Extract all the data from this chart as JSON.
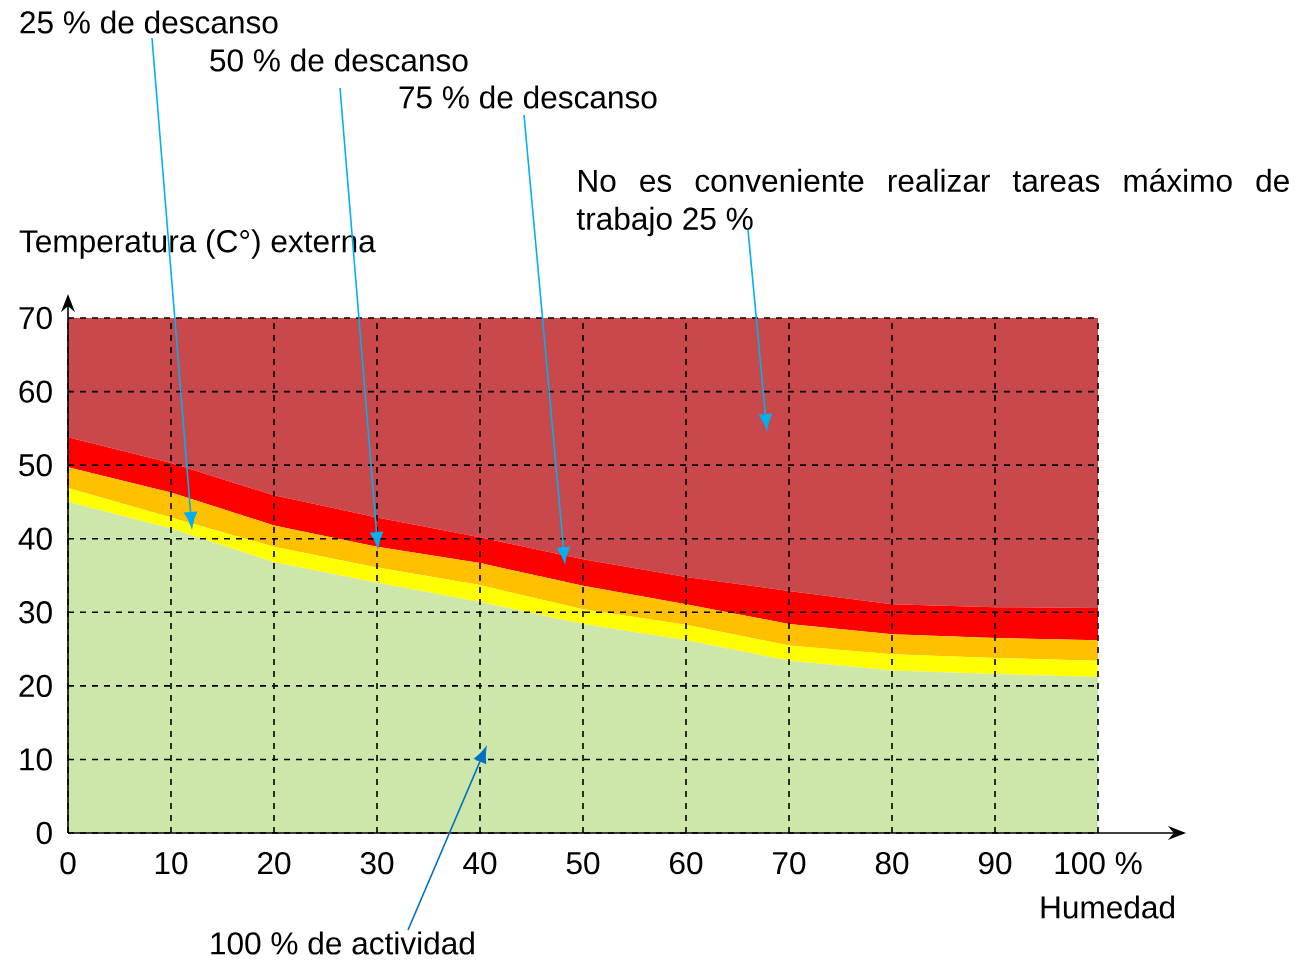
{
  "chart_data": {
    "type": "area",
    "stacked": true,
    "xlabel": "Humedad",
    "ylabel": "Temperatura (C°) externa",
    "x": [
      0,
      10,
      20,
      30,
      40,
      50,
      60,
      70,
      80,
      90,
      100
    ],
    "series": [
      {
        "color": "#cde6aa",
        "values": [
          45.0,
          41.4,
          36.8,
          34.0,
          31.4,
          28.4,
          26.2,
          23.4,
          22.1,
          21.6,
          21.2
        ]
      },
      {
        "color": "#ffff00",
        "values": [
          1.9,
          1.5,
          2.1,
          2.1,
          2.3,
          2.0,
          2.1,
          2.1,
          2.2,
          2.2,
          2.2
        ]
      },
      {
        "color": "#ffc000",
        "values": [
          2.8,
          3.4,
          2.9,
          2.8,
          3.0,
          3.2,
          2.8,
          2.9,
          2.7,
          2.7,
          2.8
        ]
      },
      {
        "color": "#ff0000",
        "values": [
          4.1,
          4.0,
          4.1,
          4.0,
          3.5,
          3.6,
          3.7,
          4.5,
          4.1,
          4.2,
          4.4
        ]
      },
      {
        "color": "#c8484b",
        "values": [
          16.2,
          19.7,
          24.1,
          27.1,
          29.8,
          32.8,
          35.2,
          37.1,
          38.9,
          39.3,
          39.4
        ]
      }
    ],
    "xlim": [
      0,
      100
    ],
    "ylim": [
      0,
      70
    ],
    "xticks": [
      0,
      10,
      20,
      30,
      40,
      50,
      60,
      70,
      80,
      90,
      {
        "value": 100,
        "label": "100 %"
      }
    ],
    "yticks": [
      0,
      10,
      20,
      30,
      40,
      50,
      60,
      70
    ],
    "grid": true,
    "annotations": [
      "25 % de descanso",
      "50 % de descanso",
      "75 % de descanso",
      "No es conveniente realizar tareas máximo de trabajo 25 %",
      "100 % de actividad"
    ]
  }
}
